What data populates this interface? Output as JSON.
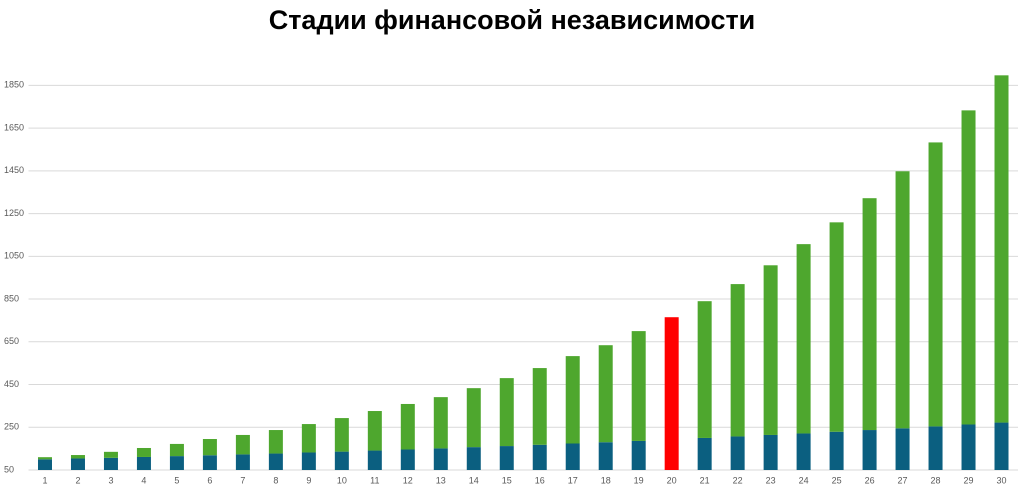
{
  "chart_data": {
    "type": "stacked-bar",
    "title": "Стадии финансовой независимости",
    "categories": [
      "1",
      "2",
      "3",
      "4",
      "5",
      "6",
      "7",
      "8",
      "9",
      "10",
      "11",
      "12",
      "13",
      "14",
      "15",
      "16",
      "17",
      "18",
      "19",
      "20",
      "21",
      "22",
      "23",
      "24",
      "25",
      "26",
      "27",
      "28",
      "29",
      "30"
    ],
    "series": [
      {
        "color": "#0b5f80",
        "values": [
          100,
          104,
          107,
          111,
          115,
          119,
          123,
          127,
          132,
          136,
          141,
          146,
          151,
          157,
          162,
          168,
          174,
          180,
          186,
          null,
          200,
          207,
          214,
          221,
          229,
          237,
          245,
          254,
          263,
          272
        ]
      },
      {
        "color": "#4ea72e",
        "values": [
          10,
          16,
          28,
          42,
          57,
          76,
          91,
          110,
          133,
          157,
          185,
          213,
          240,
          276,
          318,
          359,
          409,
          454,
          514,
          null,
          640,
          713,
          794,
          886,
          980,
          1085,
          1203,
          1329,
          1470,
          1625
        ]
      },
      {
        "color": "#ff0000",
        "values": [
          null,
          null,
          null,
          null,
          null,
          null,
          null,
          null,
          null,
          null,
          null,
          null,
          null,
          null,
          null,
          null,
          null,
          null,
          null,
          765,
          null,
          null,
          null,
          null,
          null,
          null,
          null,
          null,
          null,
          null
        ]
      }
    ],
    "ylim": [
      50,
      1950
    ],
    "yticks": [
      50,
      250,
      450,
      650,
      850,
      1050,
      1250,
      1450,
      1650,
      1850
    ],
    "grid": true
  }
}
